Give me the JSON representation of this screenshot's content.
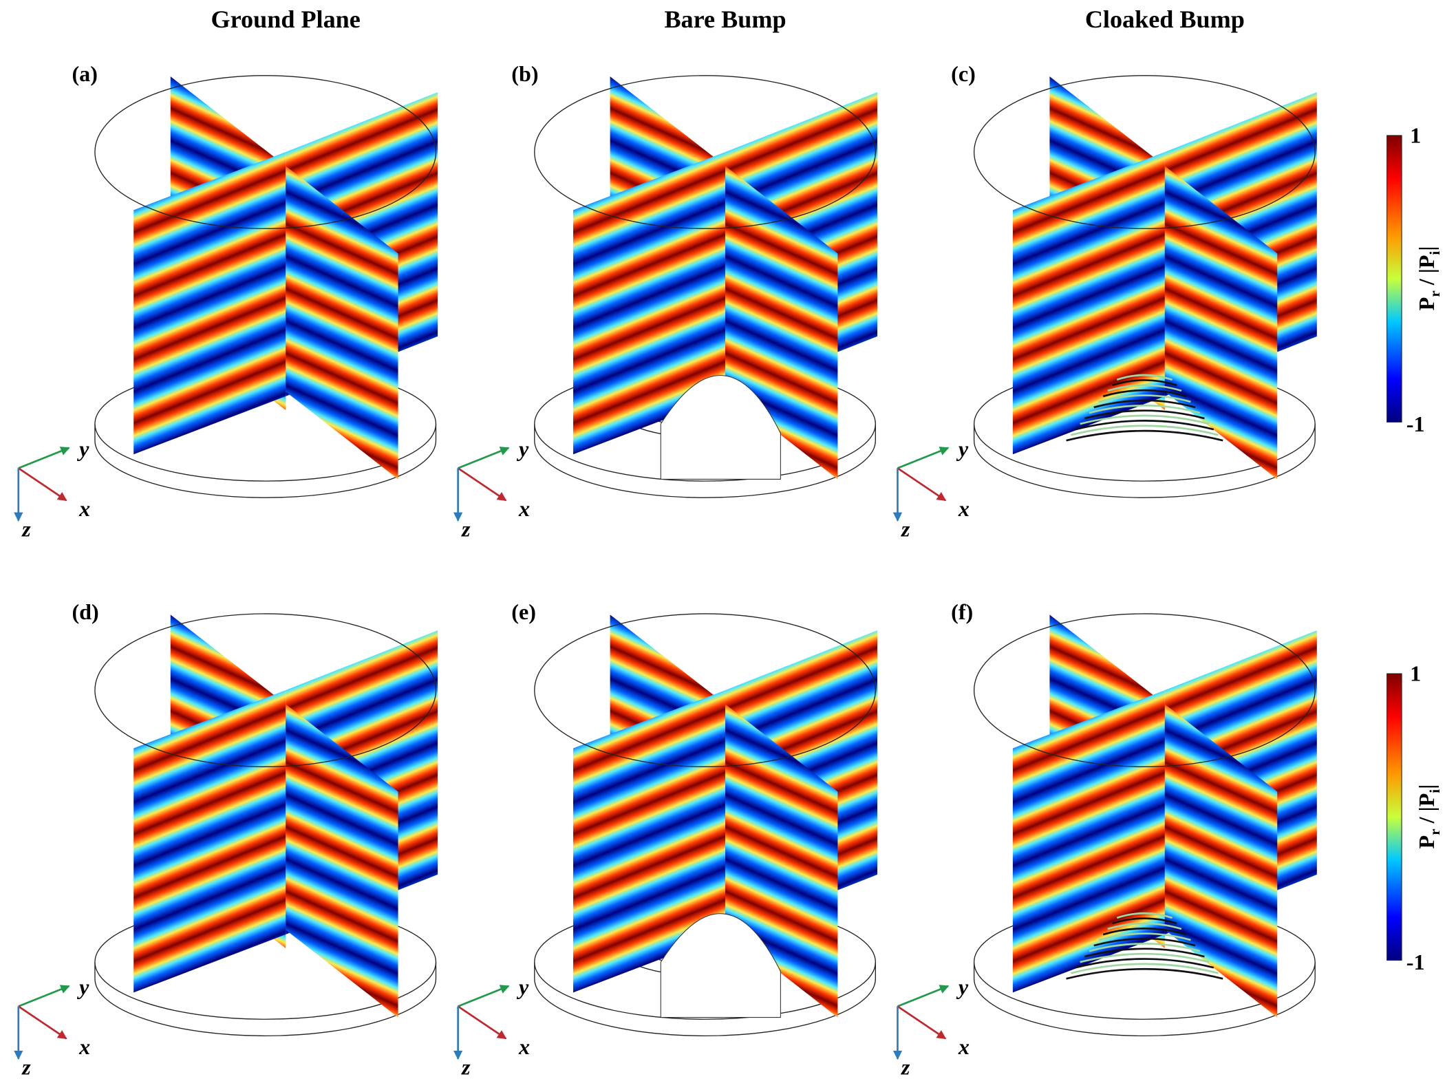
{
  "column_titles": [
    "Ground Plane",
    "Bare Bump",
    "Cloaked Bump"
  ],
  "panels": [
    {
      "label": "(a)",
      "axes": {
        "x": "x",
        "y": "y",
        "z": "z"
      }
    },
    {
      "label": "(b)",
      "axes": {
        "x": "x",
        "y": "y",
        "z": "z"
      }
    },
    {
      "label": "(c)",
      "axes": {
        "x": "x",
        "y": "y",
        "z": "z"
      }
    },
    {
      "label": "(d)",
      "axes": {
        "x": "x",
        "y": "y",
        "z": "z"
      }
    },
    {
      "label": "(e)",
      "axes": {
        "x": "x",
        "y": "y",
        "z": "z"
      }
    },
    {
      "label": "(f)",
      "axes": {
        "x": "x",
        "y": "y",
        "z": "z"
      }
    }
  ],
  "colorbars": [
    {
      "max": "1",
      "min": "-1",
      "label": [
        "P",
        "r",
        " / |P",
        "i",
        "|"
      ]
    },
    {
      "max": "1",
      "min": "-1",
      "label": [
        "P",
        "r",
        " / |P",
        "i",
        "|"
      ]
    }
  ]
}
